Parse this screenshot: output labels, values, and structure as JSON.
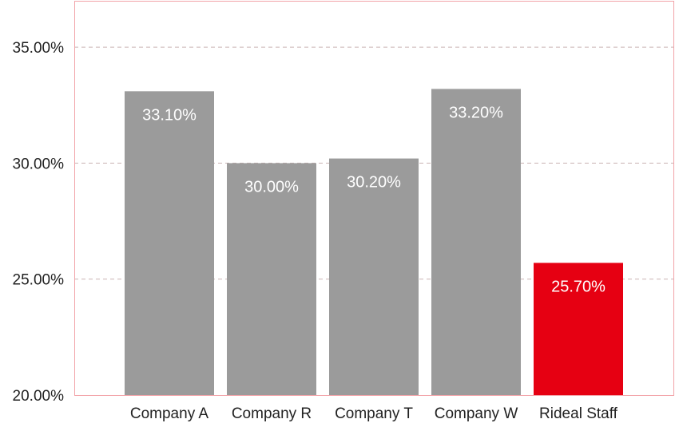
{
  "chart_data": {
    "type": "bar",
    "categories": [
      "Company A",
      "Company R",
      "Company T",
      "Company W",
      "Rideal Staff"
    ],
    "values": [
      33.1,
      30.0,
      30.2,
      33.2,
      25.7
    ],
    "data_labels": [
      "33.10%",
      "30.00%",
      "30.20%",
      "33.20%",
      "25.70%"
    ],
    "ylim": [
      20,
      37
    ],
    "yticks": [
      {
        "value": 20,
        "label": "20.00%"
      },
      {
        "value": 25,
        "label": "25.00%"
      },
      {
        "value": 30,
        "label": "30.00%"
      },
      {
        "value": 35,
        "label": "35.00%"
      }
    ],
    "grid": true,
    "colors": {
      "default_bar": "#9b9b9b",
      "highlight_bar": "#e60012",
      "frame": "#f2a3a8",
      "grid": "#c9b3b3"
    },
    "highlight_category": "Rideal Staff"
  }
}
